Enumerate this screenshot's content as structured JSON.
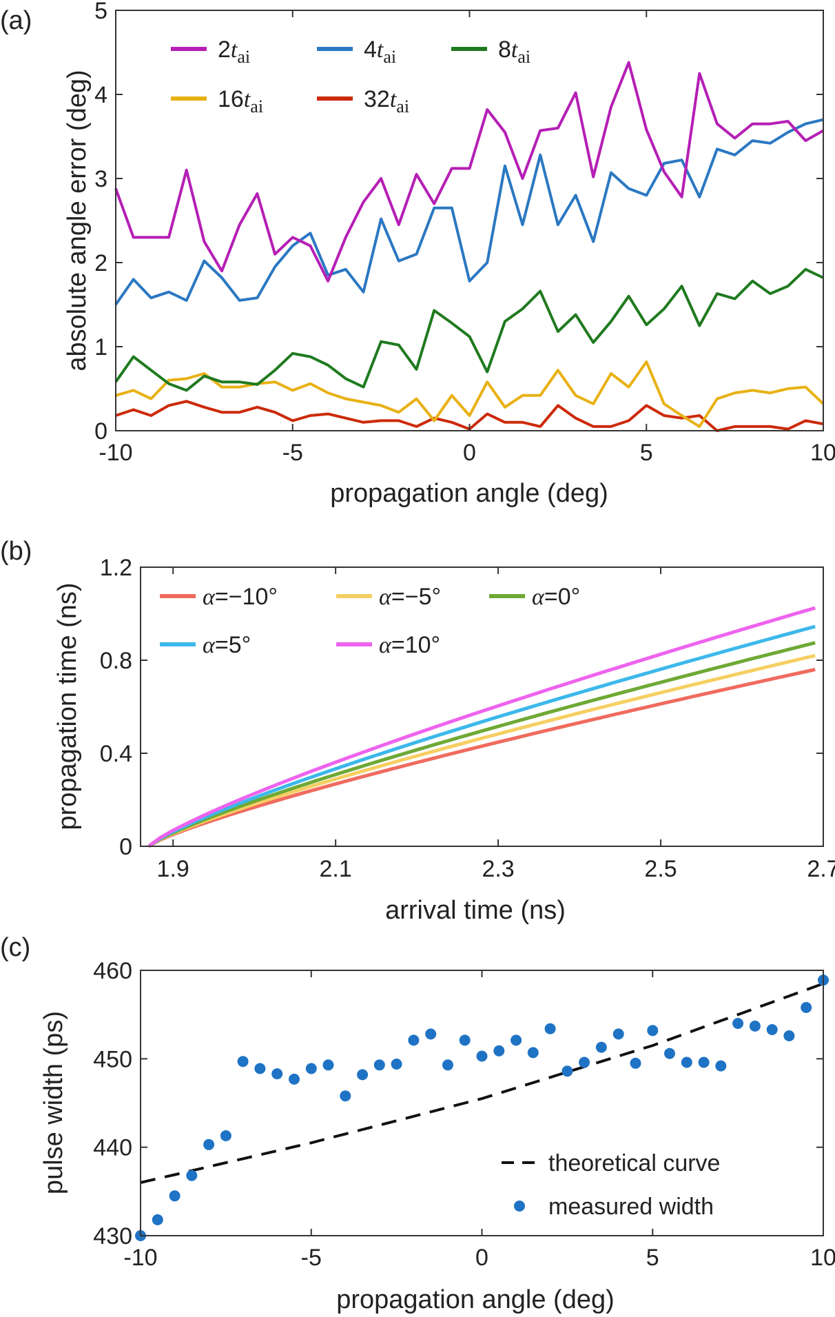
{
  "chart_data": [
    {
      "panel": "(a)",
      "type": "line",
      "xlabel": "propagation angle  (deg)",
      "ylabel": "absolute angle error (deg)",
      "xlim": [
        -10,
        10
      ],
      "ylim": [
        0,
        5
      ],
      "xticks": [
        "-10",
        "-5",
        "0",
        "5",
        "10"
      ],
      "yticks": [
        "0",
        "1",
        "2",
        "3",
        "4",
        "5"
      ],
      "x": [
        -10,
        -9.5,
        -9,
        -8.5,
        -8,
        -7.5,
        -7,
        -6.5,
        -6,
        -5.5,
        -5,
        -4.5,
        -4,
        -3.5,
        -3,
        -2.5,
        -2,
        -1.5,
        -1,
        -0.5,
        0,
        0.5,
        1,
        1.5,
        2,
        2.5,
        3,
        3.5,
        4,
        4.5,
        5,
        5.5,
        6,
        6.5,
        7,
        7.5,
        8,
        8.5,
        9,
        9.5,
        10
      ],
      "series": [
        {
          "name": "2t_ai",
          "coef": "2",
          "sub": "ai",
          "color": "#b51fb5",
          "values": [
            2.88,
            2.3,
            2.3,
            2.3,
            3.1,
            2.25,
            1.9,
            2.45,
            2.82,
            2.1,
            2.3,
            2.2,
            1.78,
            2.3,
            2.72,
            3.0,
            2.45,
            3.05,
            2.7,
            3.12,
            3.12,
            3.82,
            3.55,
            3.0,
            3.57,
            3.6,
            4.02,
            3.02,
            3.85,
            4.38,
            3.58,
            3.08,
            2.78,
            4.25,
            3.65,
            3.48,
            3.65,
            3.65,
            3.68,
            3.45,
            3.57
          ]
        },
        {
          "name": "4t_ai",
          "coef": "4",
          "sub": "ai",
          "color": "#2b78c2",
          "values": [
            1.5,
            1.8,
            1.58,
            1.65,
            1.55,
            2.02,
            1.82,
            1.55,
            1.58,
            1.95,
            2.2,
            2.35,
            1.85,
            1.92,
            1.65,
            2.52,
            2.02,
            2.1,
            2.65,
            2.65,
            1.78,
            2.0,
            3.15,
            2.45,
            3.28,
            2.45,
            2.8,
            2.25,
            3.07,
            2.88,
            2.8,
            3.18,
            3.22,
            2.78,
            3.35,
            3.28,
            3.45,
            3.42,
            3.55,
            3.65,
            3.7
          ]
        },
        {
          "name": "8t_ai",
          "coef": "8",
          "sub": "ai",
          "color": "#1f7a1f",
          "values": [
            0.58,
            0.88,
            0.72,
            0.56,
            0.48,
            0.65,
            0.58,
            0.58,
            0.55,
            0.72,
            0.92,
            0.88,
            0.78,
            0.62,
            0.52,
            1.06,
            1.02,
            0.73,
            1.43,
            1.28,
            1.12,
            0.7,
            1.3,
            1.45,
            1.66,
            1.18,
            1.38,
            1.05,
            1.3,
            1.6,
            1.26,
            1.45,
            1.72,
            1.25,
            1.63,
            1.57,
            1.78,
            1.63,
            1.72,
            1.92,
            1.82
          ]
        },
        {
          "name": "16t_ai",
          "coef": "16",
          "sub": "ai",
          "color": "#e8b114",
          "values": [
            0.42,
            0.48,
            0.38,
            0.6,
            0.62,
            0.68,
            0.52,
            0.52,
            0.56,
            0.58,
            0.48,
            0.56,
            0.45,
            0.38,
            0.34,
            0.3,
            0.22,
            0.38,
            0.12,
            0.42,
            0.18,
            0.58,
            0.28,
            0.42,
            0.42,
            0.72,
            0.42,
            0.32,
            0.68,
            0.52,
            0.82,
            0.32,
            0.18,
            0.05,
            0.38,
            0.45,
            0.48,
            0.45,
            0.5,
            0.52,
            0.32
          ]
        },
        {
          "name": "32t_ai",
          "coef": "32",
          "sub": "ai",
          "color": "#cc2a0a",
          "values": [
            0.18,
            0.25,
            0.18,
            0.3,
            0.35,
            0.28,
            0.22,
            0.22,
            0.28,
            0.22,
            0.12,
            0.18,
            0.2,
            0.15,
            0.1,
            0.12,
            0.12,
            0.05,
            0.15,
            0.1,
            0.02,
            0.2,
            0.1,
            0.1,
            0.05,
            0.3,
            0.15,
            0.05,
            0.05,
            0.12,
            0.3,
            0.18,
            0.15,
            0.18,
            0.0,
            0.05,
            0.05,
            0.05,
            0.02,
            0.12,
            0.08
          ]
        }
      ]
    },
    {
      "panel": "(b)",
      "type": "line",
      "xlabel": "arrival time (ns)",
      "ylabel": "propagation time (ns)",
      "xlim": [
        1.86,
        2.7
      ],
      "ylim": [
        0,
        1.2
      ],
      "xticks": [
        "1.9",
        "2.1",
        "2.3",
        "2.5",
        "2.7"
      ],
      "yticks": [
        "0",
        "0.4",
        "0.8",
        "1.2"
      ],
      "x_start": 1.87,
      "x_end": 2.69,
      "series": [
        {
          "name": "α=−10°",
          "prefix": "α",
          "suffix": "=−10°",
          "color": "#f06b5e",
          "end_value": 0.76
        },
        {
          "name": "α=−5°",
          "prefix": "α",
          "suffix": "=−5°",
          "color": "#f6cf62",
          "end_value": 0.82
        },
        {
          "name": "α=0°",
          "prefix": "α",
          "suffix": "=0°",
          "color": "#6ea935",
          "end_value": 0.875
        },
        {
          "name": "α=5°",
          "prefix": "α",
          "suffix": "=5°",
          "color": "#3cb8ea",
          "end_value": 0.945
        },
        {
          "name": "α=10°",
          "prefix": "α",
          "suffix": "=10°",
          "color": "#ee63ee",
          "end_value": 1.025
        }
      ]
    },
    {
      "panel": "(c)",
      "type": "scatter",
      "xlabel": "propagation angle  (deg)",
      "ylabel": "pulse width (ps)",
      "xlim": [
        -10,
        10
      ],
      "ylim": [
        430,
        460
      ],
      "xticks": [
        "-10",
        "-5",
        "0",
        "5",
        "10"
      ],
      "yticks": [
        "430",
        "440",
        "450",
        "460"
      ],
      "theory": {
        "name": "theoretical curve",
        "color": "#111111",
        "values_at": {
          "x": [
            -10,
            -5,
            0,
            5,
            10
          ],
          "y": [
            436,
            440.5,
            445.5,
            451.5,
            458.5
          ]
        }
      },
      "measured": {
        "name": "measured width",
        "color": "#1f73c4",
        "x": [
          -10,
          -9.5,
          -9,
          -8.5,
          -8,
          -7.5,
          -7,
          -6.5,
          -6,
          -5.5,
          -5,
          -4.5,
          -4,
          -3.5,
          -3,
          -2.5,
          -2,
          -1.5,
          -1,
          -0.5,
          0,
          0.5,
          1,
          1.5,
          2,
          2.5,
          3,
          3.5,
          4,
          4.5,
          5,
          5.5,
          6,
          6.5,
          7,
          7.5,
          8,
          8.5,
          9,
          9.5,
          10
        ],
        "y": [
          430,
          431.8,
          434.5,
          436.8,
          440.3,
          441.3,
          449.7,
          448.9,
          448.3,
          447.7,
          448.9,
          449.3,
          445.8,
          448.2,
          449.3,
          449.4,
          452.1,
          452.8,
          449.3,
          452.1,
          450.3,
          450.9,
          452.1,
          450.7,
          453.4,
          448.6,
          449.6,
          451.3,
          452.8,
          449.5,
          453.2,
          450.6,
          449.6,
          449.6,
          449.2,
          454.0,
          453.7,
          453.3,
          452.6,
          455.8,
          458.9
        ]
      }
    }
  ]
}
